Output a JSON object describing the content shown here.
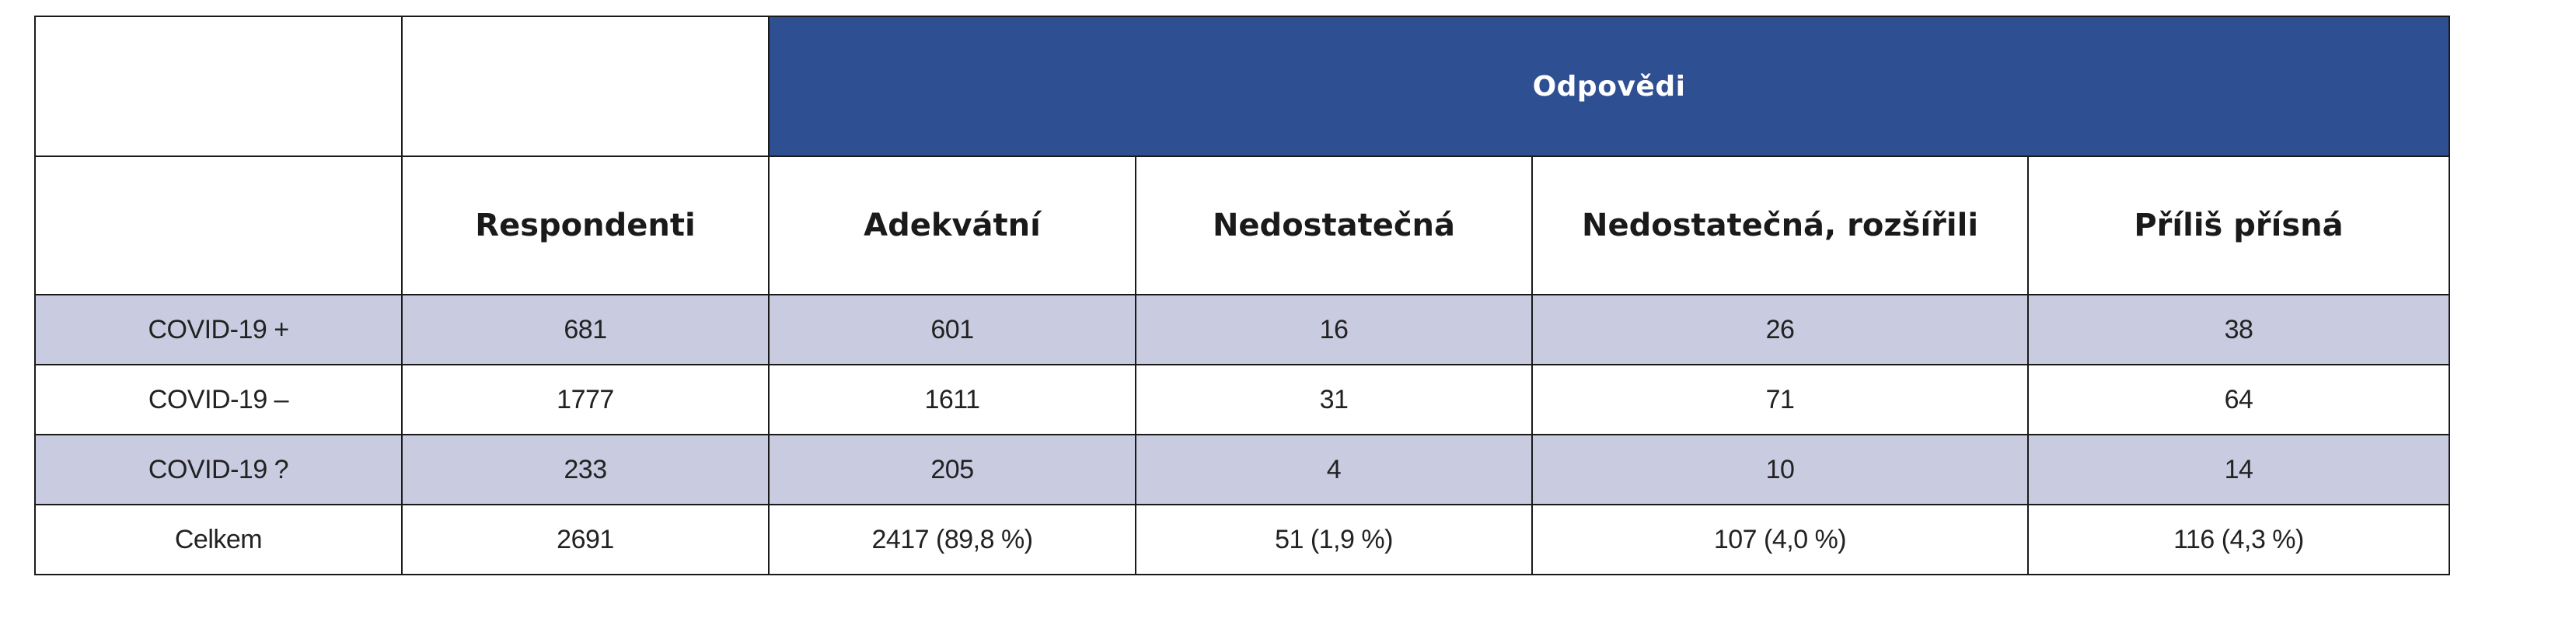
{
  "table": {
    "group_header": "Odpovědi",
    "columns": [
      "Respondenti",
      "Adekvátní",
      "Nedostatečná",
      "Nedostatečná, rozšířili",
      "Příliš přísná"
    ],
    "rows": [
      {
        "label": "COVID-19 +",
        "cells": [
          "681",
          "601",
          "16",
          "26",
          "38"
        ],
        "shaded": true
      },
      {
        "label": "COVID-19 –",
        "cells": [
          "1777",
          "1611",
          "31",
          "71",
          "64"
        ],
        "shaded": false
      },
      {
        "label": "COVID-19 ?",
        "cells": [
          "233",
          "205",
          "4",
          "10",
          "14"
        ],
        "shaded": true
      },
      {
        "label": "Celkem",
        "cells": [
          "2691",
          "2417 (89,8 %)",
          "51 (1,9 %)",
          "107 (4,0 %)",
          "116 (4,3 %)"
        ],
        "shaded": false
      }
    ]
  }
}
